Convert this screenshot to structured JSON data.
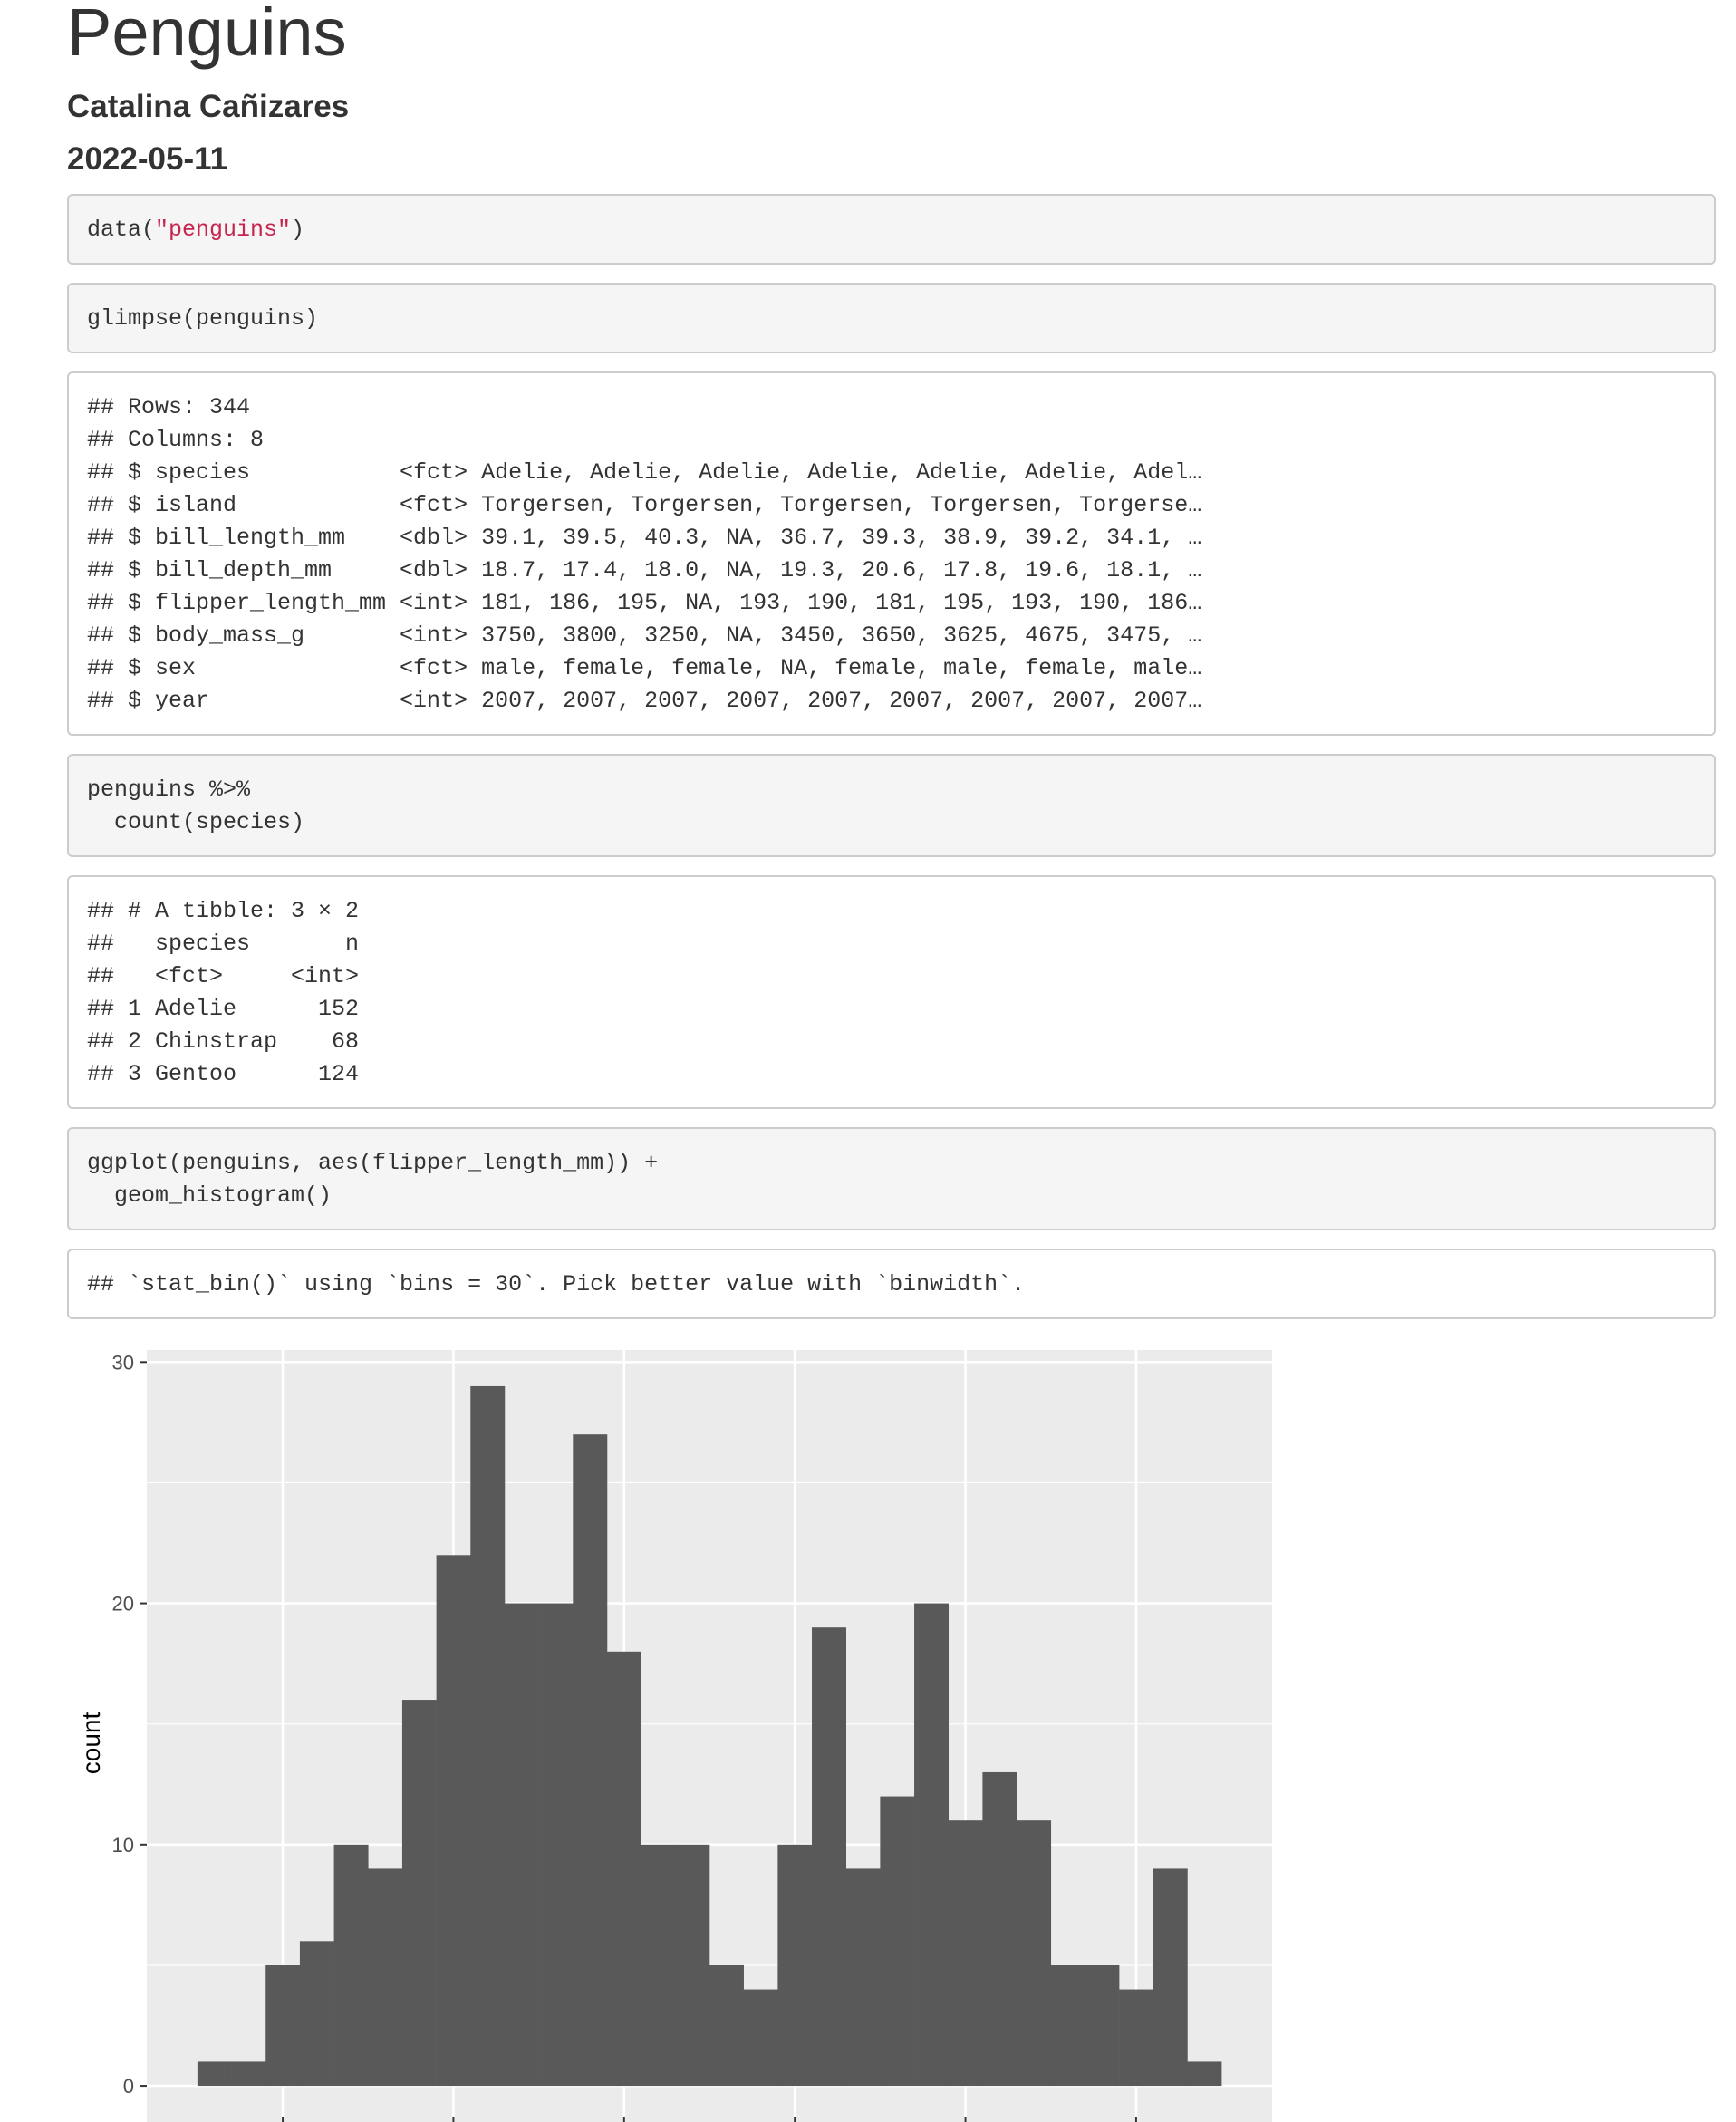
{
  "header": {
    "title": "Penguins",
    "author": "Catalina Cañizares",
    "date": "2022-05-11"
  },
  "chunks": {
    "data_call": {
      "func": "data(",
      "arg": "\"penguins\"",
      "close": ")"
    },
    "glimpse_code": "glimpse(penguins)",
    "glimpse_output": [
      "## Rows: 344",
      "## Columns: 8",
      "## $ species           <fct> Adelie, Adelie, Adelie, Adelie, Adelie, Adelie, Adel…",
      "## $ island            <fct> Torgersen, Torgersen, Torgersen, Torgersen, Torgerse…",
      "## $ bill_length_mm    <dbl> 39.1, 39.5, 40.3, NA, 36.7, 39.3, 38.9, 39.2, 34.1, …",
      "## $ bill_depth_mm     <dbl> 18.7, 17.4, 18.0, NA, 19.3, 20.6, 17.8, 19.6, 18.1, …",
      "## $ flipper_length_mm <int> 181, 186, 195, NA, 193, 190, 181, 195, 193, 190, 186…",
      "## $ body_mass_g       <int> 3750, 3800, 3250, NA, 3450, 3650, 3625, 4675, 3475, …",
      "## $ sex               <fct> male, female, female, NA, female, male, female, male…",
      "## $ year              <int> 2007, 2007, 2007, 2007, 2007, 2007, 2007, 2007, 2007…"
    ],
    "count_code": [
      "penguins %>%",
      "  count(species)"
    ],
    "count_output": [
      "## # A tibble: 3 × 2",
      "##   species       n",
      "##   <fct>     <int>",
      "## 1 Adelie      152",
      "## 2 Chinstrap    68",
      "## 3 Gentoo      124"
    ],
    "ggplot_code": [
      "ggplot(penguins, aes(flipper_length_mm)) +",
      "  geom_histogram()"
    ],
    "message_output": "## `stat_bin()` using `bins = 30`. Pick better value with `binwidth`."
  },
  "chart_data": {
    "type": "bar",
    "title": "",
    "xlabel": "",
    "ylabel": "count",
    "ylim": [
      -1.5,
      30.5
    ],
    "yticks": [
      0,
      10,
      20,
      30
    ],
    "ytick_labels": [
      "0",
      "10",
      "20",
      "30"
    ],
    "grid": true,
    "values": [
      1,
      1,
      5,
      6,
      10,
      9,
      16,
      22,
      29,
      20,
      20,
      27,
      18,
      10,
      10,
      5,
      4,
      10,
      19,
      9,
      12,
      20,
      11,
      13,
      11,
      5,
      5,
      4,
      9,
      1
    ],
    "colors": {
      "bar": "#595959",
      "panel": "#ebebeb",
      "grid": "#ffffff",
      "text": "#4d4d4d"
    }
  }
}
